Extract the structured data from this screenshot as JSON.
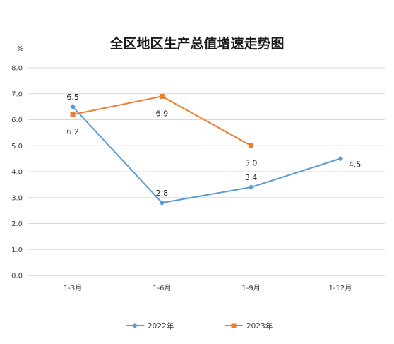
{
  "chart_data": {
    "type": "line",
    "title": "全区地区生产总值增速走势图",
    "unit_label": "%",
    "categories": [
      "1-3月",
      "1-6月",
      "1-9月",
      "1-12月"
    ],
    "y_ticks": [
      "0.0",
      "1.0",
      "2.0",
      "3.0",
      "4.0",
      "5.0",
      "6.0",
      "7.0",
      "8.0"
    ],
    "ylim": [
      0,
      8
    ],
    "grid": true,
    "legend_position": "bottom",
    "series": [
      {
        "name": "2022年",
        "values": [
          6.5,
          2.8,
          3.4,
          4.5
        ],
        "labels": [
          "6.5",
          "2.8",
          "3.4",
          "4.5"
        ],
        "color": "#5b9bd5",
        "marker": "diamond"
      },
      {
        "name": "2023年",
        "values": [
          6.2,
          6.9,
          5.0,
          null
        ],
        "labels": [
          "6.2",
          "6.9",
          "5.0",
          ""
        ],
        "color": "#ed7d31",
        "marker": "square"
      }
    ]
  }
}
